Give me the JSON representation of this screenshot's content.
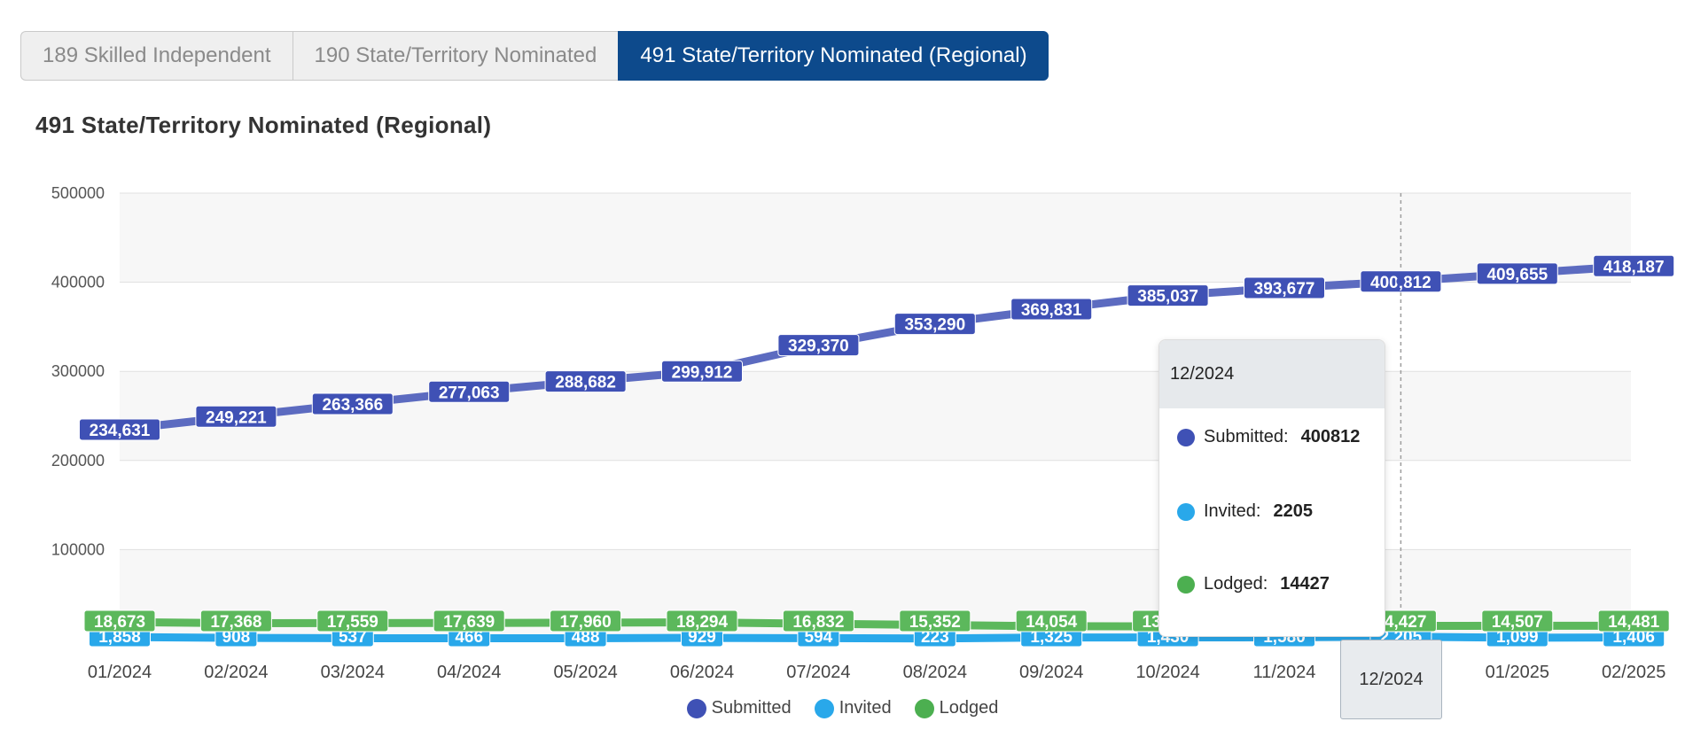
{
  "tabs": [
    {
      "label": "189 Skilled Independent",
      "active": false
    },
    {
      "label": "190 State/Territory Nominated",
      "active": false
    },
    {
      "label": "491 State/Territory Nominated (Regional)",
      "active": true
    }
  ],
  "chart_title": "491 State/Territory Nominated (Regional)",
  "chart_data": {
    "type": "line",
    "title": "491 State/Territory Nominated (Regional)",
    "categories": [
      "01/2024",
      "02/2024",
      "03/2024",
      "04/2024",
      "05/2024",
      "06/2024",
      "07/2024",
      "08/2024",
      "09/2024",
      "10/2024",
      "11/2024",
      "12/2024",
      "01/2025",
      "02/2025"
    ],
    "y_ticks": [
      500000,
      400000,
      300000,
      200000,
      100000
    ],
    "ylim": [
      0,
      500000
    ],
    "grid": true,
    "legend_position": "bottom-center",
    "series": [
      {
        "name": "Submitted",
        "color": "#5c6bc0",
        "values": [
          234631,
          249221,
          263366,
          277063,
          288682,
          299912,
          329370,
          353290,
          369831,
          385037,
          393677,
          400812,
          409655,
          418187
        ],
        "labels": [
          "234,631",
          "249,221",
          "263,366",
          "277,063",
          "288,682",
          "299,912",
          "329,370",
          "353,290",
          "369,831",
          "385,037",
          "393,677",
          "400,812",
          "409,655",
          "418,187"
        ]
      },
      {
        "name": "Invited",
        "color": "#29a8ea",
        "values": [
          1858,
          908,
          537,
          466,
          488,
          929,
          594,
          223,
          1325,
          1430,
          1580,
          2205,
          1099,
          1406
        ],
        "labels": [
          "1,858",
          "908",
          "537",
          "466",
          "488",
          "929",
          "594",
          "223",
          "1,325",
          "1,430",
          "1,580",
          "2,205",
          "1,099",
          "1,406"
        ]
      },
      {
        "name": "Lodged",
        "color": "#5cb85c",
        "values": [
          18673,
          17368,
          17559,
          17639,
          17960,
          18294,
          16832,
          15352,
          14054,
          13800,
          13900,
          14427,
          14507,
          14481
        ],
        "labels": [
          "18,673",
          "17,368",
          "17,559",
          "17,639",
          "17,960",
          "18,294",
          "16,832",
          "15,352",
          "14,054",
          "13,800",
          "13,900",
          "14,427",
          "14,507",
          "14,481"
        ]
      }
    ]
  },
  "tooltip": {
    "title": "12/2024",
    "rows": [
      {
        "name": "Submitted:",
        "value": "400812",
        "color": "#3f51b5"
      },
      {
        "name": "Invited:",
        "value": "2205",
        "color": "#29a8ea"
      },
      {
        "name": "Lodged:",
        "value": "14427",
        "color": "#4caf50"
      }
    ]
  },
  "x_highlight": "12/2024",
  "legend": [
    {
      "name": "Submitted",
      "color": "#3f51b5"
    },
    {
      "name": "Invited",
      "color": "#29a8ea"
    },
    {
      "name": "Lodged",
      "color": "#4caf50"
    }
  ]
}
